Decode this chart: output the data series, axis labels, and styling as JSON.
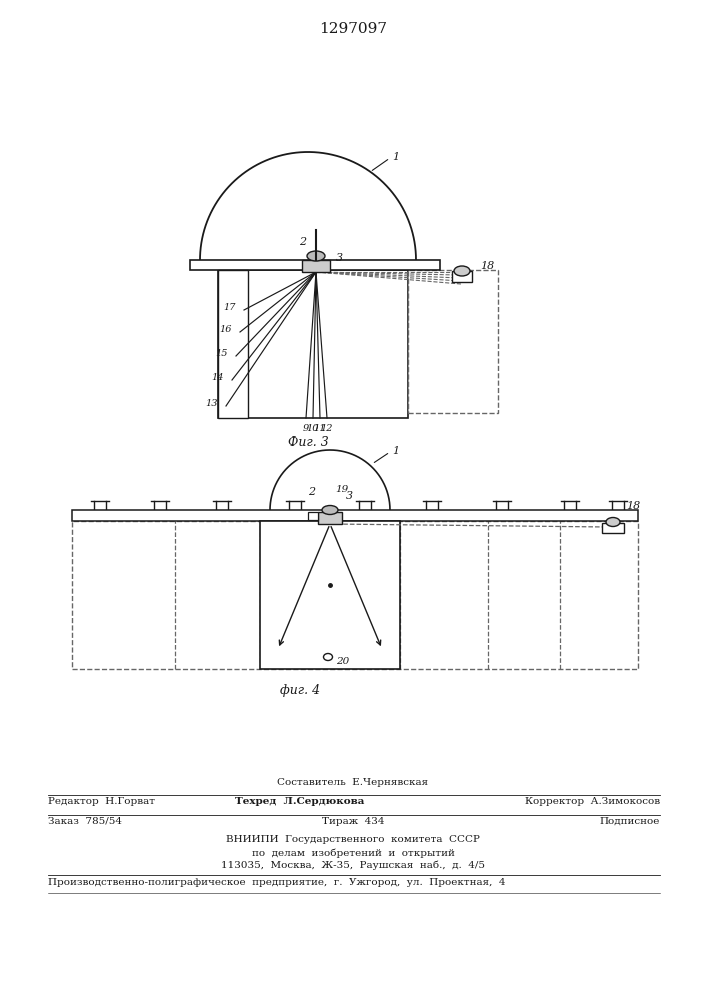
{
  "patent_number": "1297097",
  "fig3_caption": "Фиг. 3",
  "fig4_caption": "фиг. 4",
  "bg_color": "#ffffff",
  "line_color": "#1a1a1a",
  "dashed_color": "#666666"
}
